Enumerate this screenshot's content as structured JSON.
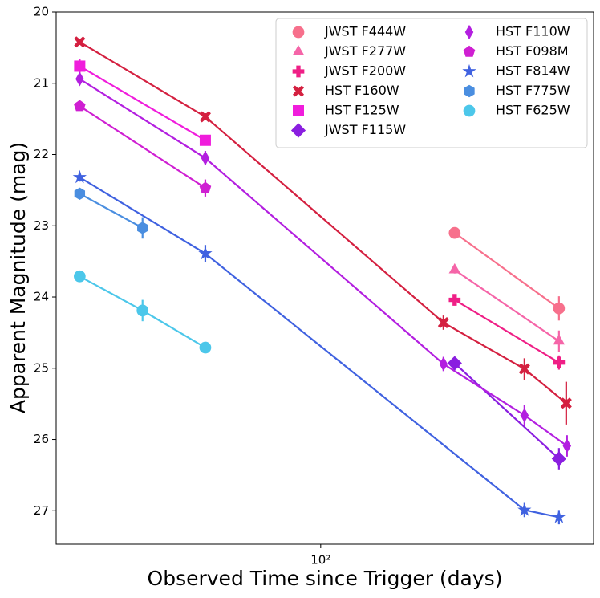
{
  "chart_data": {
    "type": "line",
    "x_label": "Observed Time since Trigger (days)",
    "y_label": "Apparent Magnitude (mag)",
    "x_log": true,
    "y_inverted": true,
    "xlim": [
      18.5,
      570
    ],
    "xticks": [
      {
        "value": 100,
        "label": "10²"
      }
    ],
    "ylim": [
      20,
      27.47
    ],
    "yticks": [
      20,
      21,
      22,
      23,
      24,
      25,
      26,
      27
    ],
    "legend_loc": "upper right",
    "legend_columns": 2,
    "series": [
      {
        "name": "JWST F444W",
        "color": "#f7708c",
        "marker": "circle",
        "x": [
          235.0,
          457.1
        ],
        "values": [
          23.1,
          24.16
        ],
        "errors": [
          0.05,
          0.17
        ]
      },
      {
        "name": "JWST F277W",
        "color": "#f565a8",
        "marker": "triangle",
        "x": [
          235.0,
          457.1
        ],
        "values": [
          23.62,
          24.62
        ],
        "errors": [
          0.05,
          0.15
        ]
      },
      {
        "name": "JWST F200W",
        "color": "#ef1f86",
        "marker": "plus",
        "x": [
          235.0,
          457.1
        ],
        "values": [
          24.04,
          24.92
        ],
        "errors": [
          0.05,
          0.1
        ]
      },
      {
        "name": "HST F160W",
        "color": "#d42040",
        "marker": "x",
        "x": [
          21.5,
          47.9,
          218.8,
          366.8,
          478.6
        ],
        "values": [
          20.42,
          21.47,
          24.36,
          25.01,
          25.49
        ],
        "errors": [
          0.04,
          0.05,
          0.1,
          0.15,
          0.3
        ]
      },
      {
        "name": "HST F125W",
        "color": "#f01ddc",
        "marker": "square",
        "x": [
          21.5,
          47.9
        ],
        "values": [
          20.76,
          21.8
        ],
        "errors": [
          0.1,
          0.05
        ]
      },
      {
        "name": "JWST F115W",
        "color": "#8a1ee0",
        "marker": "diamond",
        "x": [
          235.0,
          457.1
        ],
        "values": [
          24.93,
          26.27
        ],
        "errors": [
          0.05,
          0.15
        ]
      },
      {
        "name": "HST F110W",
        "color": "#b31fe0",
        "marker": "thin_diamond",
        "x": [
          21.5,
          47.9,
          218.8,
          366.8,
          481.0
        ],
        "values": [
          20.94,
          22.05,
          24.94,
          25.66,
          26.09
        ],
        "errors": [
          0.05,
          0.1,
          0.1,
          0.15,
          0.15
        ]
      },
      {
        "name": "HST F098M",
        "color": "#cf1fd2",
        "marker": "pentagon",
        "x": [
          21.5,
          47.9
        ],
        "values": [
          21.32,
          22.47
        ],
        "errors": [
          0.05,
          0.12
        ]
      },
      {
        "name": "HST F814W",
        "color": "#4062e0",
        "marker": "star",
        "x": [
          21.5,
          47.9,
          366.8,
          457.1
        ],
        "values": [
          22.32,
          23.39,
          26.99,
          27.09
        ],
        "errors": [
          0.06,
          0.12,
          0.1,
          0.1
        ]
      },
      {
        "name": "HST F775W",
        "color": "#4a8ee0",
        "marker": "hexagon",
        "x": [
          21.5,
          32.1
        ],
        "values": [
          22.55,
          23.03
        ],
        "errors": [
          0.05,
          0.15
        ]
      },
      {
        "name": "HST F625W",
        "color": "#4cc7ea",
        "marker": "circle",
        "x": [
          21.5,
          32.1,
          47.9
        ],
        "values": [
          23.71,
          24.19,
          24.71
        ],
        "errors": [
          0.05,
          0.15,
          0.05
        ]
      }
    ]
  }
}
